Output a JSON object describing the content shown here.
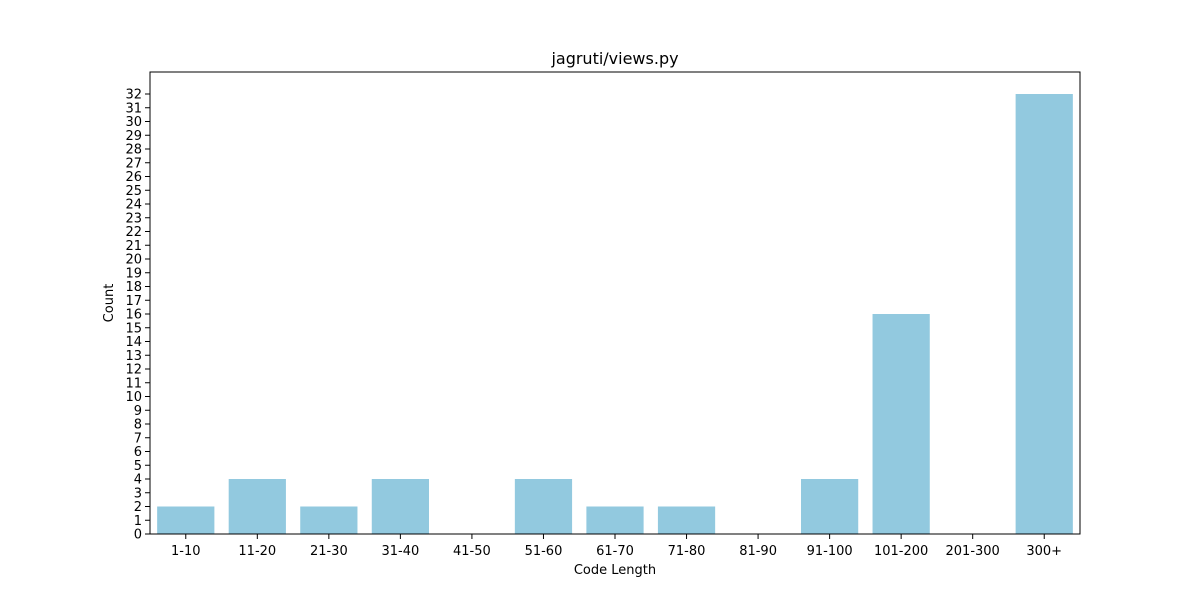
{
  "chart_data": {
    "type": "bar",
    "title": "jagruti/views.py",
    "xlabel": "Code Length",
    "ylabel": "Count",
    "categories": [
      "1-10",
      "11-20",
      "21-30",
      "31-40",
      "41-50",
      "51-60",
      "61-70",
      "71-80",
      "81-90",
      "91-100",
      "101-200",
      "201-300",
      "300+"
    ],
    "values": [
      2,
      4,
      2,
      4,
      0,
      4,
      2,
      2,
      0,
      4,
      16,
      0,
      32
    ],
    "ylim": [
      0,
      33.6
    ],
    "yticks": [
      0,
      1,
      2,
      3,
      4,
      5,
      6,
      7,
      8,
      9,
      10,
      11,
      12,
      13,
      14,
      15,
      16,
      17,
      18,
      19,
      20,
      21,
      22,
      23,
      24,
      25,
      26,
      27,
      28,
      29,
      30,
      31,
      32
    ],
    "bar_color": "#92c9df",
    "grid": false,
    "legend": false
  }
}
